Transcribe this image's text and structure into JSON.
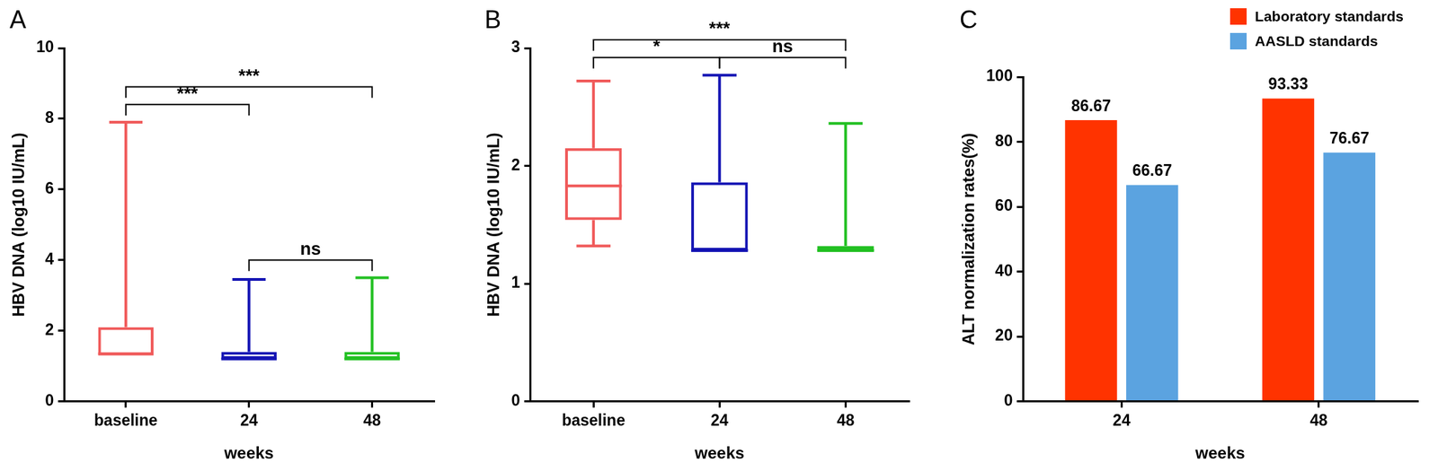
{
  "chart_data": [
    {
      "type": "box",
      "panel": "A",
      "y_label": "HBV DNA (log10 IU/mL)",
      "x_label": "weeks",
      "categories": [
        "baseline",
        "24",
        "48"
      ],
      "colors": [
        "#f05a5a",
        "#1414b4",
        "#22c022"
      ],
      "stats": [
        {
          "min": 1.3,
          "q1": 1.3,
          "median": 1.35,
          "q3": 2.1,
          "max": 7.9
        },
        {
          "min": 1.2,
          "q1": 1.2,
          "median": 1.2,
          "q3": 1.4,
          "max": 3.45
        },
        {
          "min": 1.2,
          "q1": 1.2,
          "median": 1.2,
          "q3": 1.4,
          "max": 3.5
        }
      ],
      "ylim": [
        0,
        10
      ],
      "yticks": [
        0,
        2,
        4,
        6,
        8,
        10
      ],
      "grid": false,
      "annotations": [
        {
          "from": "baseline",
          "to": "24",
          "label": "***"
        },
        {
          "from": "24",
          "to": "48",
          "label": "ns"
        },
        {
          "from": "baseline",
          "to": "48",
          "label": "***"
        }
      ]
    },
    {
      "type": "box",
      "panel": "B",
      "y_label": "HBV DNA (log10 IU/mL)",
      "x_label": "weeks",
      "categories": [
        "baseline",
        "24",
        "48"
      ],
      "colors": [
        "#f05a5a",
        "#1414b4",
        "#22c022"
      ],
      "stats": [
        {
          "min": 1.32,
          "q1": 1.54,
          "median": 1.83,
          "q3": 2.15,
          "max": 2.72
        },
        {
          "min": 1.28,
          "q1": 1.28,
          "median": 1.28,
          "q3": 1.86,
          "max": 2.77
        },
        {
          "min": 1.28,
          "q1": 1.28,
          "median": 1.28,
          "q3": 1.32,
          "max": 2.36
        }
      ],
      "ylim": [
        0,
        3
      ],
      "yticks": [
        0,
        1,
        2,
        3
      ],
      "grid": false,
      "annotations": [
        {
          "from": "baseline",
          "to": "24",
          "label": "*"
        },
        {
          "from": "24",
          "to": "48",
          "label": "ns"
        },
        {
          "from": "baseline",
          "to": "48",
          "label": "***"
        }
      ]
    },
    {
      "type": "bar",
      "panel": "C",
      "y_label": "ALT normalization rates(%)",
      "x_label": "weeks",
      "categories": [
        "24",
        "48"
      ],
      "series": [
        {
          "name": "Laboratory standards",
          "color": "#ff3300",
          "values": [
            86.67,
            93.33
          ]
        },
        {
          "name": "AASLD standards",
          "color": "#5ba3e0",
          "values": [
            66.67,
            76.67
          ]
        }
      ],
      "ylim": [
        0,
        100
      ],
      "yticks": [
        0,
        20,
        40,
        60,
        80,
        100
      ],
      "grid": false,
      "data_labels": true,
      "legend": "top right"
    }
  ]
}
